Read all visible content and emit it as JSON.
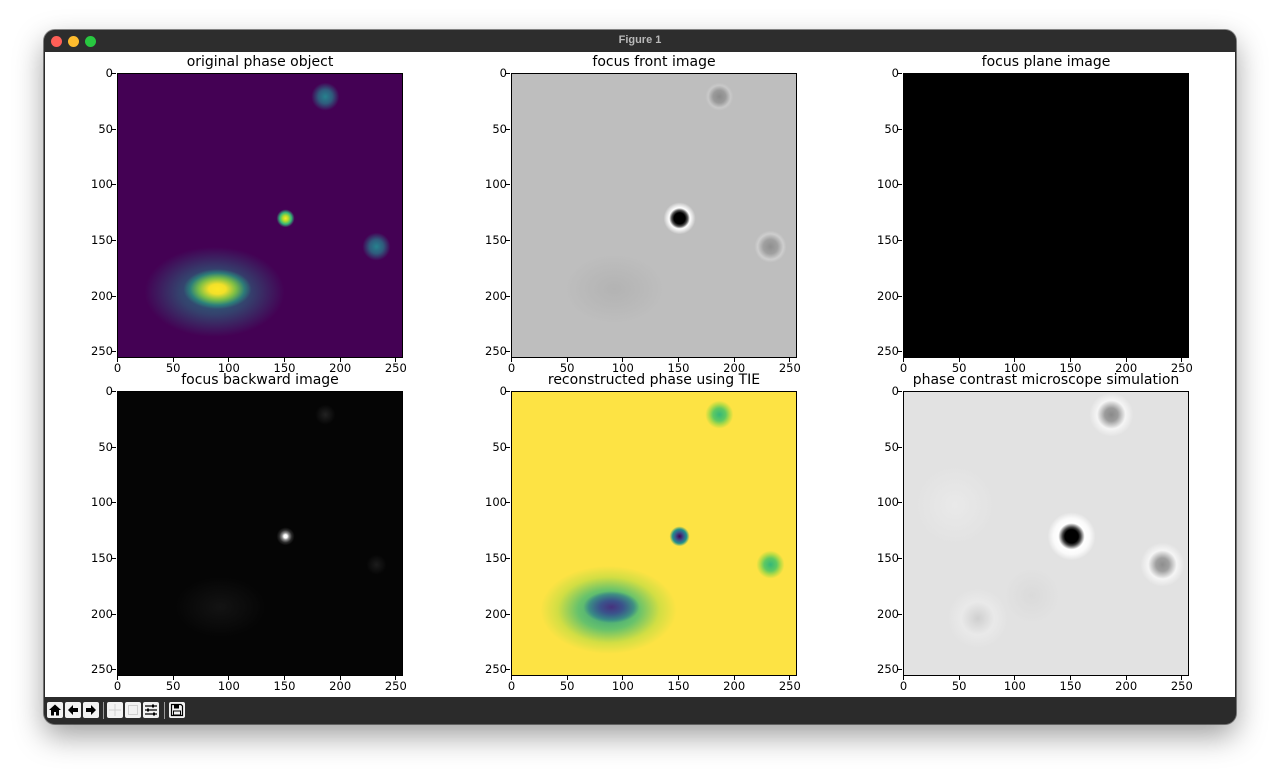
{
  "window": {
    "title": "Figure 1"
  },
  "toolbar": {
    "buttons": [
      {
        "name": "home-button",
        "icon": "home-icon"
      },
      {
        "name": "back-button",
        "icon": "arrow-left-icon"
      },
      {
        "name": "forward-button",
        "icon": "arrow-right-icon"
      },
      {
        "name": "pan-button",
        "icon": "move-icon"
      },
      {
        "name": "zoom-button",
        "icon": "zoom-rect-icon"
      },
      {
        "name": "configure-subplots-button",
        "icon": "sliders-icon"
      },
      {
        "name": "save-button",
        "icon": "save-icon"
      }
    ]
  },
  "chart_data": [
    {
      "type": "heatmap",
      "title": "original phase object",
      "colormap": "viridis",
      "xlim": [
        0,
        256
      ],
      "ylim": [
        256,
        0
      ],
      "xticks": [
        "0",
        "50",
        "100",
        "150",
        "200",
        "250"
      ],
      "yticks": [
        "0",
        "50",
        "100",
        "150",
        "200",
        "250"
      ]
    },
    {
      "type": "heatmap",
      "title": "focus front image",
      "colormap": "gray",
      "xlim": [
        0,
        256
      ],
      "ylim": [
        256,
        0
      ],
      "xticks": [
        "0",
        "50",
        "100",
        "150",
        "200",
        "250"
      ],
      "yticks": [
        "0",
        "50",
        "100",
        "150",
        "200",
        "250"
      ]
    },
    {
      "type": "heatmap",
      "title": "focus plane image",
      "colormap": "gray",
      "xlim": [
        0,
        256
      ],
      "ylim": [
        256,
        0
      ],
      "xticks": [
        "0",
        "50",
        "100",
        "150",
        "200",
        "250"
      ],
      "yticks": [
        "0",
        "50",
        "100",
        "150",
        "200",
        "250"
      ]
    },
    {
      "type": "heatmap",
      "title": "focus backward image",
      "colormap": "gray",
      "xlim": [
        0,
        256
      ],
      "ylim": [
        256,
        0
      ],
      "xticks": [
        "0",
        "50",
        "100",
        "150",
        "200",
        "250"
      ],
      "yticks": [
        "0",
        "50",
        "100",
        "150",
        "200",
        "250"
      ]
    },
    {
      "type": "heatmap",
      "title": "reconstructed phase using TIE",
      "colormap": "viridis",
      "xlim": [
        0,
        256
      ],
      "ylim": [
        256,
        0
      ],
      "xticks": [
        "0",
        "50",
        "100",
        "150",
        "200",
        "250"
      ],
      "yticks": [
        "0",
        "50",
        "100",
        "150",
        "200",
        "250"
      ]
    },
    {
      "type": "heatmap",
      "title": "phase contrast microscope simulation",
      "colormap": "gray",
      "xlim": [
        0,
        256
      ],
      "ylim": [
        256,
        0
      ],
      "xticks": [
        "0",
        "50",
        "100",
        "150",
        "200",
        "250"
      ],
      "yticks": [
        "0",
        "50",
        "100",
        "150",
        "200",
        "250"
      ]
    }
  ]
}
